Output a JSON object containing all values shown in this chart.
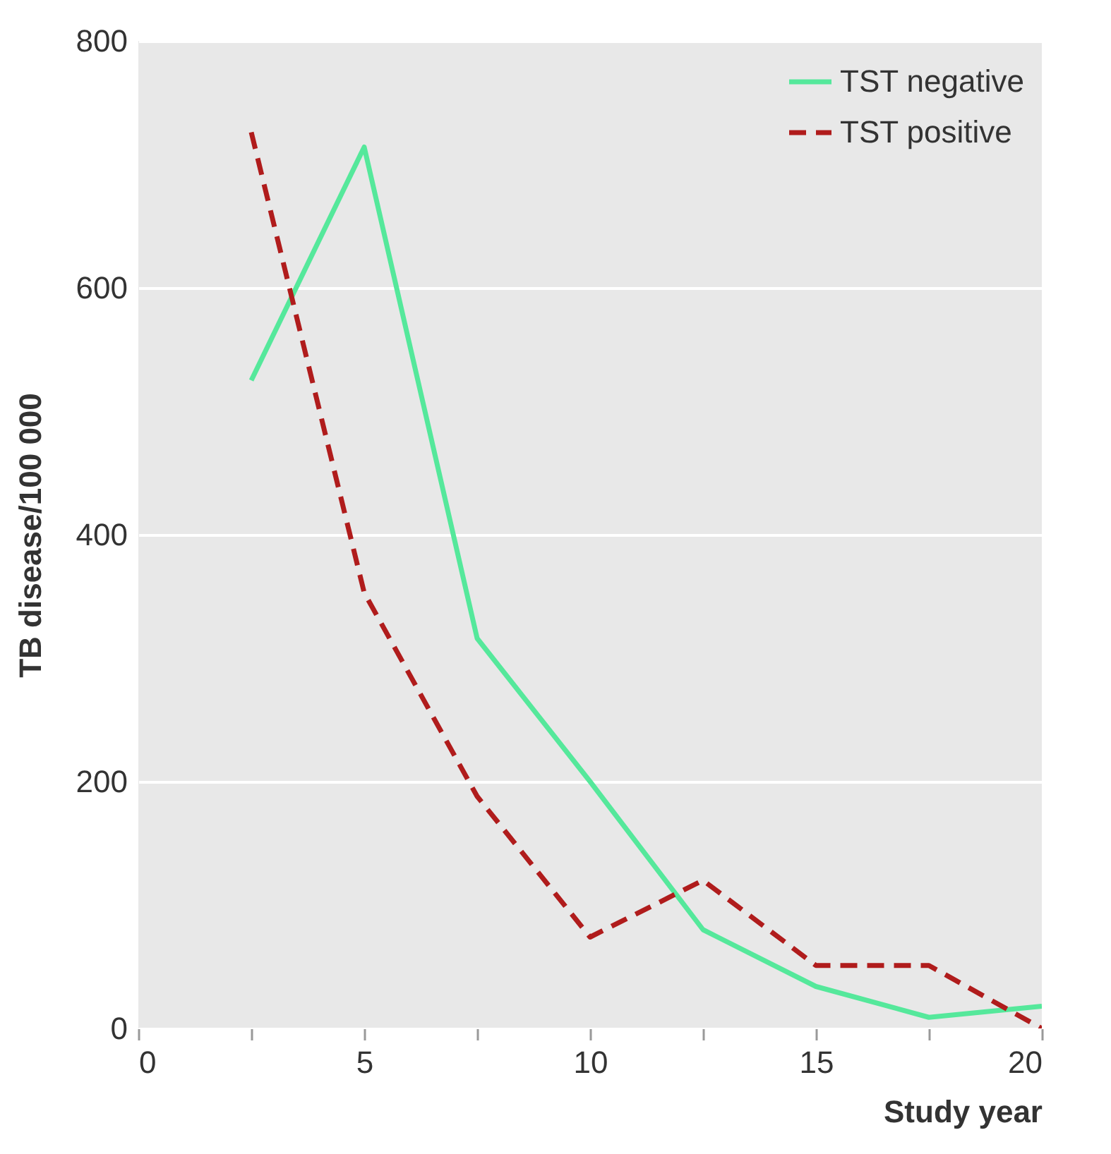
{
  "chart_data": {
    "type": "line",
    "xlabel": "Study year",
    "ylabel": "TB disease/100 000",
    "x": [
      2.5,
      5,
      7.5,
      10,
      12.5,
      15,
      17.5,
      20
    ],
    "series": [
      {
        "name": "TST negative",
        "color": "#55e89b",
        "line_style": "solid",
        "values": [
          525,
          714,
          316,
          200,
          80,
          34,
          9,
          18
        ]
      },
      {
        "name": "TST positive",
        "color": "#b01c1c",
        "line_style": "dashed",
        "values": [
          726,
          353,
          188,
          74,
          120,
          51,
          51,
          0
        ]
      }
    ],
    "xlim": [
      0,
      20
    ],
    "xticks": [
      0,
      {
        "value": 2.5,
        "label": null
      },
      5,
      {
        "value": 7.5,
        "label": null
      },
      10,
      {
        "value": 12.5,
        "label": null
      },
      15,
      {
        "value": 17.5,
        "label": null
      },
      20
    ],
    "ylim": [
      0,
      800
    ],
    "yticks": [
      0,
      200,
      400,
      600,
      800
    ],
    "grid": "y",
    "legend": "top right",
    "marker": "none"
  }
}
